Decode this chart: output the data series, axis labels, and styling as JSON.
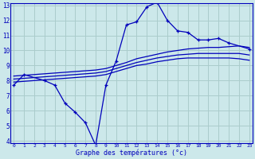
{
  "xlabel": "Graphe des températures (°c)",
  "background_color": "#cce8ea",
  "line_color": "#0000bb",
  "grid_color": "#aacccc",
  "hours": [
    0,
    1,
    2,
    3,
    4,
    5,
    6,
    7,
    8,
    9,
    10,
    11,
    12,
    13,
    14,
    15,
    16,
    17,
    18,
    19,
    20,
    21,
    22,
    23
  ],
  "temp_actual": [
    7.7,
    8.4,
    null,
    8.0,
    7.7,
    6.5,
    5.9,
    5.2,
    3.7,
    7.7,
    9.3,
    11.7,
    11.9,
    12.9,
    13.2,
    12.0,
    11.3,
    11.2,
    10.7,
    10.7,
    10.8,
    10.5,
    null,
    10.1
  ],
  "temp_avg_max": [
    8.3,
    8.35,
    8.4,
    8.45,
    8.5,
    8.55,
    8.6,
    8.65,
    8.7,
    8.8,
    9.0,
    9.2,
    9.45,
    9.6,
    9.75,
    9.9,
    10.0,
    10.1,
    10.15,
    10.2,
    10.2,
    10.25,
    10.3,
    10.2
  ],
  "temp_avg": [
    8.1,
    8.15,
    8.2,
    8.25,
    8.3,
    8.35,
    8.4,
    8.45,
    8.5,
    8.6,
    8.8,
    9.0,
    9.2,
    9.35,
    9.5,
    9.6,
    9.7,
    9.75,
    9.8,
    9.8,
    9.8,
    9.8,
    9.8,
    9.7
  ],
  "temp_avg_min": [
    7.9,
    7.95,
    8.0,
    8.05,
    8.1,
    8.15,
    8.2,
    8.25,
    8.3,
    8.4,
    8.6,
    8.8,
    9.0,
    9.1,
    9.25,
    9.35,
    9.45,
    9.5,
    9.5,
    9.5,
    9.5,
    9.5,
    9.45,
    9.35
  ],
  "ylim_min": 4,
  "ylim_max": 13,
  "yticks": [
    4,
    5,
    6,
    7,
    8,
    9,
    10,
    11,
    12,
    13
  ],
  "xticks": [
    0,
    1,
    2,
    3,
    4,
    5,
    6,
    7,
    8,
    9,
    10,
    11,
    12,
    13,
    14,
    15,
    16,
    17,
    18,
    19,
    20,
    21,
    22,
    23
  ]
}
